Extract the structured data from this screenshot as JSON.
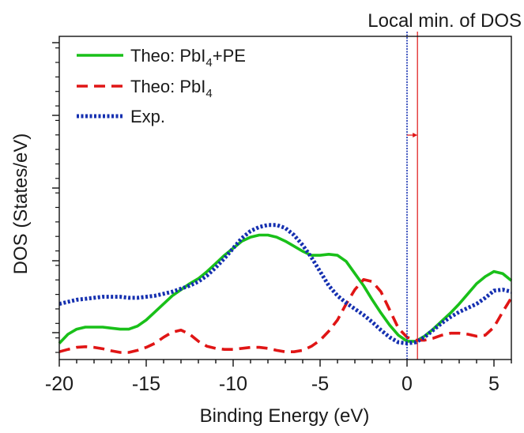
{
  "chart_data": {
    "type": "line",
    "title": "",
    "xlabel": "Binding Energy (eV)",
    "ylabel": "DOS (States/eV)",
    "xlim": [
      -20,
      6
    ],
    "ylim": [
      0,
      100
    ],
    "yticks_labeled": false,
    "grid": false,
    "legend_position": "top-left",
    "x_ticks": [
      -20,
      -15,
      -10,
      -5,
      0,
      5
    ],
    "x_tick_labels": [
      "-20",
      "-15",
      "-10",
      "-5",
      "0",
      "5"
    ],
    "annotation": {
      "text": "Local min. of DOS",
      "experimental_x": 0.0,
      "theory_x": 0.6
    },
    "series": [
      {
        "name": "Theo: PbI4+PE",
        "legend_main": "Theo: PbI",
        "legend_sub": "4",
        "legend_tail": "+PE",
        "color": "#19c019",
        "style": "solid",
        "points": [
          [
            -20,
            4.5
          ],
          [
            -19.5,
            9
          ],
          [
            -19,
            11.5
          ],
          [
            -18.5,
            12.5
          ],
          [
            -18,
            12.5
          ],
          [
            -17.5,
            12.5
          ],
          [
            -17,
            12
          ],
          [
            -16.5,
            11.5
          ],
          [
            -16,
            11.5
          ],
          [
            -15.5,
            13
          ],
          [
            -15,
            16
          ],
          [
            -14.5,
            20
          ],
          [
            -14,
            24
          ],
          [
            -13.5,
            28
          ],
          [
            -13,
            31
          ],
          [
            -12.5,
            34
          ],
          [
            -12,
            36.5
          ],
          [
            -11.5,
            40
          ],
          [
            -11,
            44
          ],
          [
            -10.5,
            48
          ],
          [
            -10,
            51.5
          ],
          [
            -9.5,
            55
          ],
          [
            -9,
            57
          ],
          [
            -8.5,
            58
          ],
          [
            -8,
            58
          ],
          [
            -7.5,
            57
          ],
          [
            -7,
            55
          ],
          [
            -6.5,
            52.5
          ],
          [
            -6,
            50
          ],
          [
            -5.5,
            48
          ],
          [
            -5,
            48
          ],
          [
            -4.5,
            48.5
          ],
          [
            -4,
            48
          ],
          [
            -3.5,
            45
          ],
          [
            -3,
            39
          ],
          [
            -2.5,
            33
          ],
          [
            -2,
            26
          ],
          [
            -1.5,
            19.5
          ],
          [
            -1,
            13.5
          ],
          [
            -0.5,
            8.5
          ],
          [
            0,
            5.5
          ],
          [
            0.5,
            5.5
          ],
          [
            1,
            8
          ],
          [
            1.5,
            11.5
          ],
          [
            2,
            15.5
          ],
          [
            2.5,
            19.5
          ],
          [
            3,
            24
          ],
          [
            3.5,
            29
          ],
          [
            4,
            34
          ],
          [
            4.5,
            37.5
          ],
          [
            5,
            40
          ],
          [
            5.5,
            39
          ],
          [
            6,
            35.5
          ]
        ]
      },
      {
        "name": "Theo: PbI4",
        "legend_main": "Theo: PbI",
        "legend_sub": "4",
        "legend_tail": "",
        "color": "#e01515",
        "style": "dashed",
        "points": [
          [
            -20,
            0.3
          ],
          [
            -19.5,
            1.5
          ],
          [
            -19,
            2.5
          ],
          [
            -18.5,
            2.8
          ],
          [
            -18,
            2.5
          ],
          [
            -17.5,
            1.8
          ],
          [
            -17,
            0.8
          ],
          [
            -16.5,
            0.0
          ],
          [
            -16,
            0.0
          ],
          [
            -15.5,
            1.0
          ],
          [
            -15,
            2.5
          ],
          [
            -14.5,
            4.5
          ],
          [
            -14,
            7.5
          ],
          [
            -13.5,
            10
          ],
          [
            -13,
            11
          ],
          [
            -12.5,
            9
          ],
          [
            -12,
            5.5
          ],
          [
            -11.5,
            3
          ],
          [
            -11,
            2
          ],
          [
            -10.5,
            1.5
          ],
          [
            -10,
            1.5
          ],
          [
            -9.5,
            2
          ],
          [
            -9,
            2.5
          ],
          [
            -8.5,
            2.5
          ],
          [
            -8,
            2
          ],
          [
            -7.5,
            1
          ],
          [
            -7,
            0.3
          ],
          [
            -6.5,
            0.3
          ],
          [
            -6,
            1
          ],
          [
            -5.5,
            3
          ],
          [
            -5,
            6
          ],
          [
            -4.5,
            10.5
          ],
          [
            -4,
            16
          ],
          [
            -3.5,
            24
          ],
          [
            -3,
            31
          ],
          [
            -2.5,
            36
          ],
          [
            -2,
            35
          ],
          [
            -1.5,
            30
          ],
          [
            -1,
            21
          ],
          [
            -0.5,
            12
          ],
          [
            0,
            7.5
          ],
          [
            0.5,
            6
          ],
          [
            1,
            6
          ],
          [
            1.5,
            7
          ],
          [
            2,
            8.5
          ],
          [
            2.5,
            9.5
          ],
          [
            3,
            9.5
          ],
          [
            3.5,
            9
          ],
          [
            4,
            8
          ],
          [
            4.5,
            8.5
          ],
          [
            5,
            12.5
          ],
          [
            5.5,
            20
          ],
          [
            6,
            27
          ]
        ]
      },
      {
        "name": "Exp.",
        "legend_main": "Exp.",
        "legend_sub": "",
        "legend_tail": "",
        "color": "#1530b0",
        "style": "dotted",
        "points": [
          [
            -20,
            24
          ],
          [
            -19.5,
            25
          ],
          [
            -19,
            26
          ],
          [
            -18.5,
            26.5
          ],
          [
            -18,
            27
          ],
          [
            -17.5,
            27.5
          ],
          [
            -17,
            27.5
          ],
          [
            -16.5,
            27.5
          ],
          [
            -16,
            27
          ],
          [
            -15.5,
            27
          ],
          [
            -15,
            27.5
          ],
          [
            -14.5,
            28
          ],
          [
            -14,
            29
          ],
          [
            -13.5,
            30
          ],
          [
            -13,
            31.5
          ],
          [
            -12.5,
            33
          ],
          [
            -12,
            35
          ],
          [
            -11.5,
            38
          ],
          [
            -11,
            42
          ],
          [
            -10.5,
            46.5
          ],
          [
            -10,
            51.5
          ],
          [
            -9.5,
            56.5
          ],
          [
            -9,
            60
          ],
          [
            -8.5,
            62
          ],
          [
            -8,
            63
          ],
          [
            -7.5,
            63
          ],
          [
            -7,
            61.5
          ],
          [
            -6.5,
            58
          ],
          [
            -6,
            53
          ],
          [
            -5.5,
            47
          ],
          [
            -5,
            40
          ],
          [
            -4.5,
            33
          ],
          [
            -4,
            28
          ],
          [
            -3.5,
            24.5
          ],
          [
            -3,
            21.5
          ],
          [
            -2.5,
            18.5
          ],
          [
            -2,
            15
          ],
          [
            -1.5,
            11
          ],
          [
            -1,
            7.5
          ],
          [
            -0.5,
            5
          ],
          [
            0,
            4.5
          ],
          [
            0.5,
            5
          ],
          [
            1,
            7.5
          ],
          [
            1.5,
            11
          ],
          [
            2,
            14.5
          ],
          [
            2.5,
            17.5
          ],
          [
            3,
            20
          ],
          [
            3.5,
            22
          ],
          [
            4,
            24
          ],
          [
            4.5,
            27
          ],
          [
            5,
            30.5
          ],
          [
            5.5,
            31
          ],
          [
            6,
            30
          ]
        ]
      }
    ]
  }
}
